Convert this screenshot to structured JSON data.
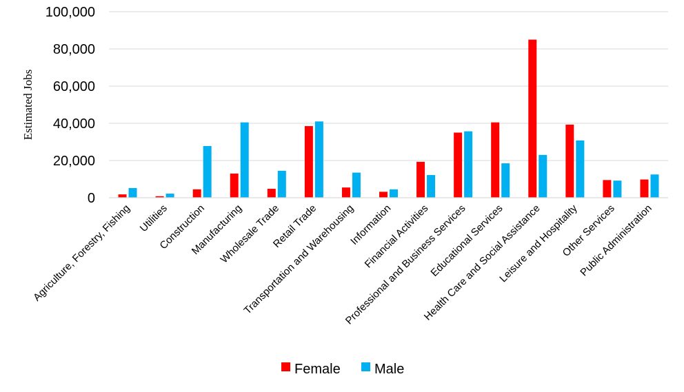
{
  "chart_data": {
    "type": "bar",
    "title": "",
    "xlabel": "",
    "ylabel": "Estimated Jobs",
    "ylim": [
      0,
      100000
    ],
    "yticks": [
      0,
      20000,
      40000,
      60000,
      80000,
      100000
    ],
    "ytick_labels": [
      "0",
      "20,000",
      "40,000",
      "60,000",
      "80,000",
      "100,000"
    ],
    "grid": true,
    "legend_position": "bottom",
    "categories": [
      "Agriculture, Forestry, Fishing",
      "Utilities",
      "Construction",
      "Manufacturing",
      "Wholesale Trade",
      "Retail Trade",
      "Transportation and Warehousing",
      "Information",
      "Financial Activities",
      "Professional and Business Services",
      "Educational Services",
      "Health Care and Social Assistance",
      "Leisure and Hospitality",
      "Other Services",
      "Public Administration"
    ],
    "series": [
      {
        "name": "Female",
        "color": "#FF0000",
        "values": [
          1800,
          800,
          4500,
          13000,
          4800,
          38500,
          5500,
          3200,
          19300,
          35000,
          40500,
          85000,
          39300,
          9500,
          9800
        ]
      },
      {
        "name": "Male",
        "color": "#00B0F0",
        "values": [
          5200,
          2200,
          27800,
          40500,
          14500,
          41000,
          13500,
          4500,
          12200,
          35700,
          18500,
          23000,
          30800,
          9200,
          12500
        ]
      }
    ]
  }
}
